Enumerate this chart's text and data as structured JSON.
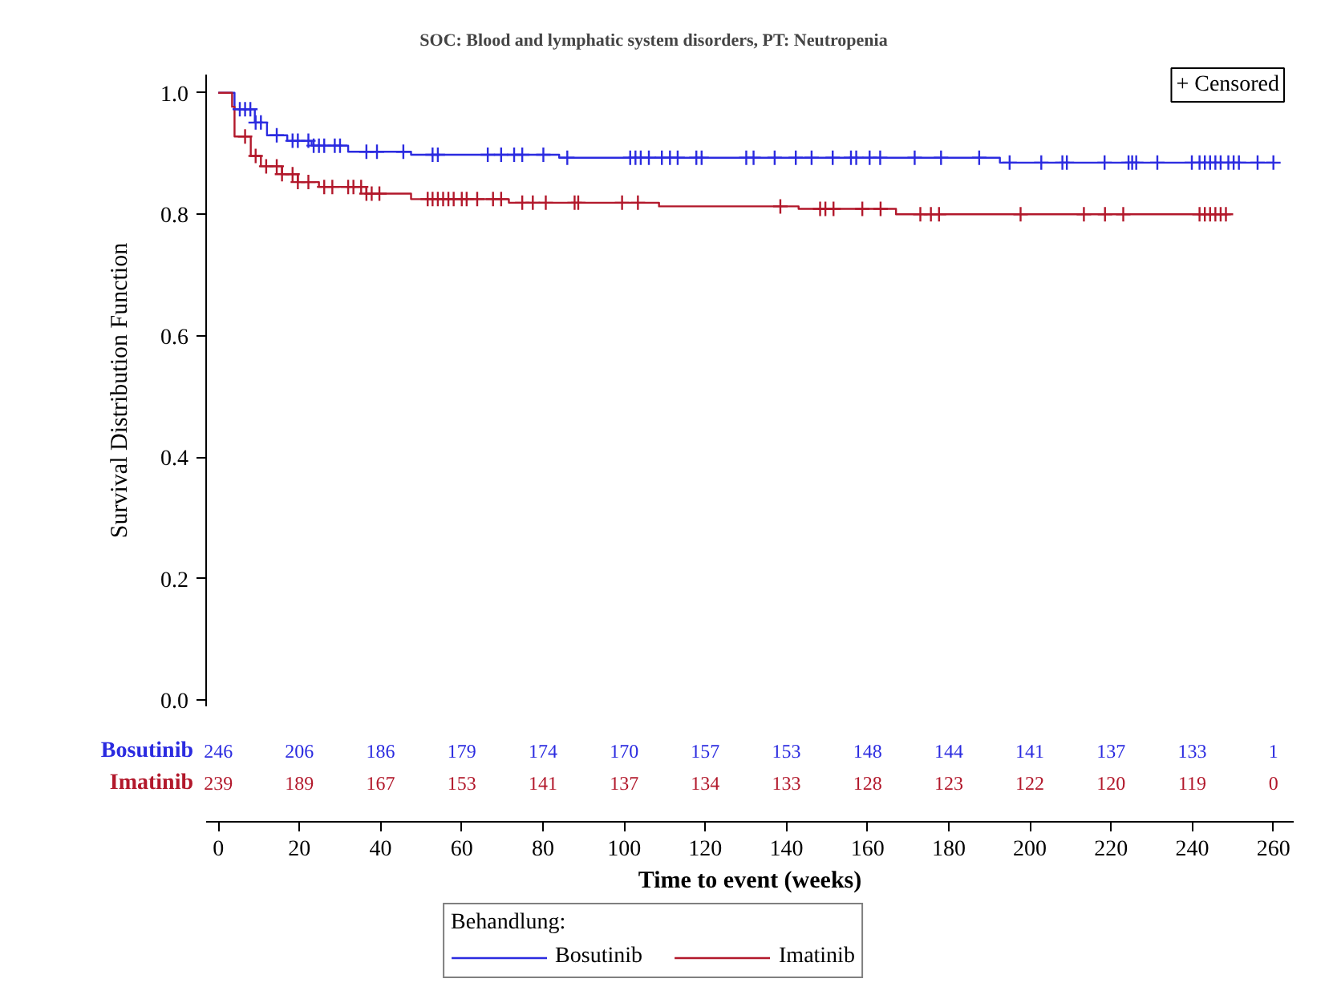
{
  "chart_data": {
    "type": "step",
    "title": "SOC: Blood and lymphatic system disorders, PT: Neutropenia",
    "xlabel": "Time to event (weeks)",
    "ylabel": "Survival Distribution Function",
    "legend_title": "Behandlung:",
    "legend": "bottom",
    "xlim": [
      -3,
      265
    ],
    "ylim": [
      -0.01,
      1.03
    ],
    "xticks": [
      0,
      20,
      40,
      60,
      80,
      100,
      120,
      140,
      160,
      180,
      200,
      220,
      240,
      260
    ],
    "yticks": [
      {
        "value": 0,
        "label": "0.0"
      },
      {
        "value": 0.2,
        "label": "0.2"
      },
      {
        "value": 0.4,
        "label": "0.4"
      },
      {
        "value": 0.6,
        "label": "0.6"
      },
      {
        "value": 0.8,
        "label": "0.8"
      },
      {
        "value": 1,
        "label": "1.0"
      }
    ],
    "grid": false,
    "series": [
      {
        "name": "Bosutinib",
        "color": "#2b2be0",
        "x": [
          0,
          4,
          9,
          12,
          17,
          23,
          32,
          47.5,
          84,
          192.6,
          260
        ],
        "values": [
          1.0,
          0.973,
          0.951,
          0.93,
          0.921,
          0.913,
          0.903,
          0.898,
          0.893,
          0.885,
          0.885
        ]
      },
      {
        "name": "Imatinib",
        "color": "#b2182b",
        "x": [
          0,
          3.4,
          4,
          8,
          10.5,
          15.7,
          19.6,
          24.8,
          36.5,
          47.5,
          71.6,
          108.6,
          143,
          167,
          249.5
        ],
        "values": [
          1.0,
          0.977,
          0.928,
          0.896,
          0.879,
          0.866,
          0.853,
          0.845,
          0.834,
          0.825,
          0.819,
          0.813,
          0.809,
          0.8,
          0.8
        ]
      },
      {
        "color": "#2b2be0",
        "type": "scatter",
        "marker": "cross",
        "x": [
          5.3,
          6.6,
          7.9,
          9.2,
          10.5,
          14.4,
          18.3,
          19.6,
          22.2,
          23.5,
          24.8,
          26.1,
          28.7,
          30.0,
          36.5,
          39.1,
          45.6,
          52.8,
          54.1,
          66.4,
          69.7,
          72.9,
          74.9,
          80.1,
          86.0,
          101.5,
          102.8,
          104.1,
          106.1,
          109.3,
          111.3,
          113.2,
          117.8,
          119.1,
          130.1,
          131.9,
          137.1,
          142.3,
          146.2,
          151.4,
          155.9,
          157.2,
          160.5,
          163.1,
          171.6,
          178.1,
          187.5,
          195.0,
          202.8,
          208.0,
          209.1,
          218.4,
          224.3,
          225.2,
          226.2,
          231.4,
          239.9,
          241.8,
          243.1,
          244.4,
          245.7,
          247.0,
          248.9,
          250.2,
          251.5,
          256.1,
          260.0
        ],
        "values": [
          0.973,
          0.973,
          0.973,
          0.951,
          0.951,
          0.93,
          0.921,
          0.921,
          0.921,
          0.913,
          0.913,
          0.913,
          0.913,
          0.913,
          0.903,
          0.903,
          0.903,
          0.898,
          0.898,
          0.898,
          0.898,
          0.898,
          0.898,
          0.898,
          0.893,
          0.893,
          0.893,
          0.893,
          0.893,
          0.893,
          0.893,
          0.893,
          0.893,
          0.893,
          0.893,
          0.893,
          0.893,
          0.893,
          0.893,
          0.893,
          0.893,
          0.893,
          0.893,
          0.893,
          0.893,
          0.893,
          0.893,
          0.885,
          0.885,
          0.885,
          0.885,
          0.885,
          0.885,
          0.885,
          0.885,
          0.885,
          0.885,
          0.885,
          0.885,
          0.885,
          0.885,
          0.885,
          0.885,
          0.885,
          0.885,
          0.885,
          0.885
        ]
      },
      {
        "color": "#b2182b",
        "type": "scatter",
        "marker": "cross",
        "x": [
          6.6,
          9.2,
          11.8,
          14.4,
          15.7,
          18.3,
          19.6,
          22.2,
          26.1,
          28.1,
          32.0,
          33.3,
          35.2,
          36.5,
          37.8,
          39.7,
          51.6,
          52.8,
          54.1,
          55.4,
          56.7,
          58.0,
          60.0,
          61.2,
          63.8,
          67.7,
          69.7,
          74.9,
          77.5,
          80.7,
          87.8,
          88.7,
          99.5,
          103.4,
          138.5,
          148.3,
          149.6,
          151.6,
          158.7,
          163.2,
          173.0,
          175.6,
          177.6,
          197.7,
          213.3,
          218.5,
          223.0,
          241.8,
          243.1,
          244.4,
          245.7,
          247.0,
          248.3
        ],
        "values": [
          0.928,
          0.896,
          0.879,
          0.879,
          0.866,
          0.866,
          0.853,
          0.853,
          0.845,
          0.845,
          0.845,
          0.845,
          0.845,
          0.834,
          0.834,
          0.834,
          0.825,
          0.825,
          0.825,
          0.825,
          0.825,
          0.825,
          0.825,
          0.825,
          0.825,
          0.825,
          0.825,
          0.819,
          0.819,
          0.819,
          0.819,
          0.819,
          0.819,
          0.819,
          0.813,
          0.809,
          0.809,
          0.809,
          0.809,
          0.809,
          0.8,
          0.8,
          0.8,
          0.8,
          0.8,
          0.8,
          0.8,
          0.8,
          0.8,
          0.8,
          0.8,
          0.8,
          0.8
        ]
      }
    ],
    "annotations": [
      "+ Censored",
      "Bosutinib",
      "246",
      "206",
      "186",
      "179",
      "174",
      "170",
      "157",
      "153",
      "148",
      "144",
      "141",
      "137",
      "133",
      "1",
      "Imatinib",
      "239",
      "189",
      "167",
      "153",
      "141",
      "137",
      "134",
      "133",
      "128",
      "123",
      "122",
      "120",
      "119",
      "0"
    ]
  }
}
